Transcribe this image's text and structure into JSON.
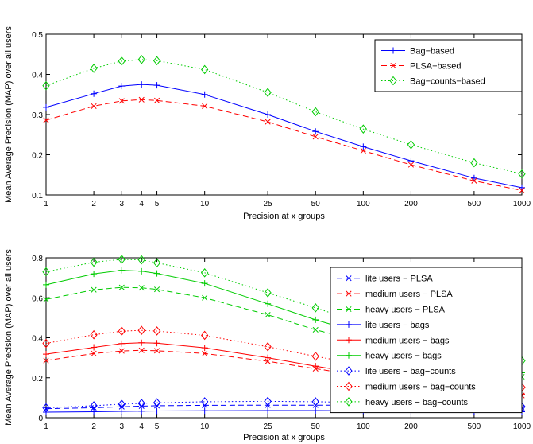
{
  "chart_data": [
    {
      "type": "line",
      "xscale": "log",
      "x": [
        1,
        2,
        3,
        4,
        5,
        10,
        25,
        50,
        100,
        200,
        500,
        1000
      ],
      "xticks": [
        "1",
        "2",
        "3",
        "4",
        "5",
        "10",
        "25",
        "50",
        "100",
        "200",
        "500",
        "1000"
      ],
      "xlabel": "Precision at x groups",
      "ylabel": "Mean Average Precision (MAP) over all users",
      "ylim": [
        0.1,
        0.5
      ],
      "yticks": [
        "0.1",
        "0.2",
        "0.3",
        "0.4",
        "0.5"
      ],
      "grid": false,
      "legend": "top-right",
      "series": [
        {
          "name": "Bag−based",
          "color": "#0000ff",
          "dash": "solid",
          "marker": "plus",
          "values": [
            0.318,
            0.352,
            0.371,
            0.375,
            0.373,
            0.35,
            0.3,
            0.258,
            0.22,
            0.185,
            0.142,
            0.118
          ]
        },
        {
          "name": "PLSA−based",
          "color": "#ff0000",
          "dash": "dashed",
          "marker": "x",
          "values": [
            0.286,
            0.321,
            0.334,
            0.337,
            0.335,
            0.321,
            0.282,
            0.245,
            0.21,
            0.175,
            0.135,
            0.111
          ]
        },
        {
          "name": "Bag−counts−based",
          "color": "#00cc00",
          "dash": "dotted",
          "marker": "diamond",
          "values": [
            0.372,
            0.415,
            0.433,
            0.437,
            0.434,
            0.412,
            0.355,
            0.307,
            0.264,
            0.225,
            0.18,
            0.152
          ]
        }
      ]
    },
    {
      "type": "line",
      "xscale": "log",
      "x": [
        1,
        2,
        3,
        4,
        5,
        10,
        25,
        50,
        100,
        200,
        500,
        1000
      ],
      "xticks": [
        "1",
        "2",
        "3",
        "4",
        "5",
        "10",
        "25",
        "50",
        "100",
        "200",
        "500",
        "1000"
      ],
      "xlabel": "Precision at x groups",
      "ylabel": "Mean Average Precision (MAP) over all users",
      "ylim": [
        0,
        0.8
      ],
      "yticks": [
        "0",
        "0.2",
        "0.4",
        "0.6",
        "0.8"
      ],
      "grid": false,
      "legend": "top-right",
      "series": [
        {
          "name": "lite users − PLSA",
          "color": "#0000ff",
          "dash": "dashed",
          "marker": "x",
          "values": [
            0.045,
            0.05,
            0.055,
            0.058,
            0.06,
            0.062,
            0.063,
            0.063,
            0.062,
            0.06,
            0.055,
            0.05
          ]
        },
        {
          "name": "medium users − PLSA",
          "color": "#ff0000",
          "dash": "dashed",
          "marker": "x",
          "values": [
            0.286,
            0.321,
            0.334,
            0.337,
            0.335,
            0.321,
            0.282,
            0.245,
            0.21,
            0.175,
            0.135,
            0.111
          ]
        },
        {
          "name": "heavy users − PLSA",
          "color": "#00cc00",
          "dash": "dashed",
          "marker": "x",
          "values": [
            0.592,
            0.64,
            0.652,
            0.65,
            0.642,
            0.6,
            0.515,
            0.44,
            0.38,
            0.32,
            0.25,
            0.205
          ]
        },
        {
          "name": "lite users − bags",
          "color": "#0000ff",
          "dash": "solid",
          "marker": "plus",
          "values": [
            0.028,
            0.03,
            0.032,
            0.033,
            0.034,
            0.035,
            0.036,
            0.036,
            0.035,
            0.034,
            0.032,
            0.03
          ]
        },
        {
          "name": "medium users − bags",
          "color": "#ff0000",
          "dash": "solid",
          "marker": "plus",
          "values": [
            0.318,
            0.352,
            0.371,
            0.375,
            0.373,
            0.35,
            0.3,
            0.258,
            0.22,
            0.185,
            0.142,
            0.118
          ]
        },
        {
          "name": "heavy users − bags",
          "color": "#00cc00",
          "dash": "solid",
          "marker": "plus",
          "values": [
            0.665,
            0.72,
            0.738,
            0.733,
            0.722,
            0.672,
            0.57,
            0.49,
            0.42,
            0.355,
            0.275,
            0.225
          ]
        },
        {
          "name": "lite users − bag−counts",
          "color": "#0000ff",
          "dash": "dotted",
          "marker": "diamond",
          "values": [
            0.05,
            0.06,
            0.068,
            0.072,
            0.075,
            0.08,
            0.082,
            0.08,
            0.076,
            0.07,
            0.062,
            0.055
          ]
        },
        {
          "name": "medium users − bag−counts",
          "color": "#ff0000",
          "dash": "dotted",
          "marker": "diamond",
          "values": [
            0.372,
            0.415,
            0.433,
            0.437,
            0.434,
            0.412,
            0.355,
            0.307,
            0.264,
            0.225,
            0.18,
            0.152
          ]
        },
        {
          "name": "heavy users − bag−counts",
          "color": "#00cc00",
          "dash": "dotted",
          "marker": "diamond",
          "values": [
            0.73,
            0.778,
            0.792,
            0.79,
            0.775,
            0.725,
            0.625,
            0.55,
            0.47,
            0.405,
            0.335,
            0.285
          ]
        }
      ]
    }
  ]
}
